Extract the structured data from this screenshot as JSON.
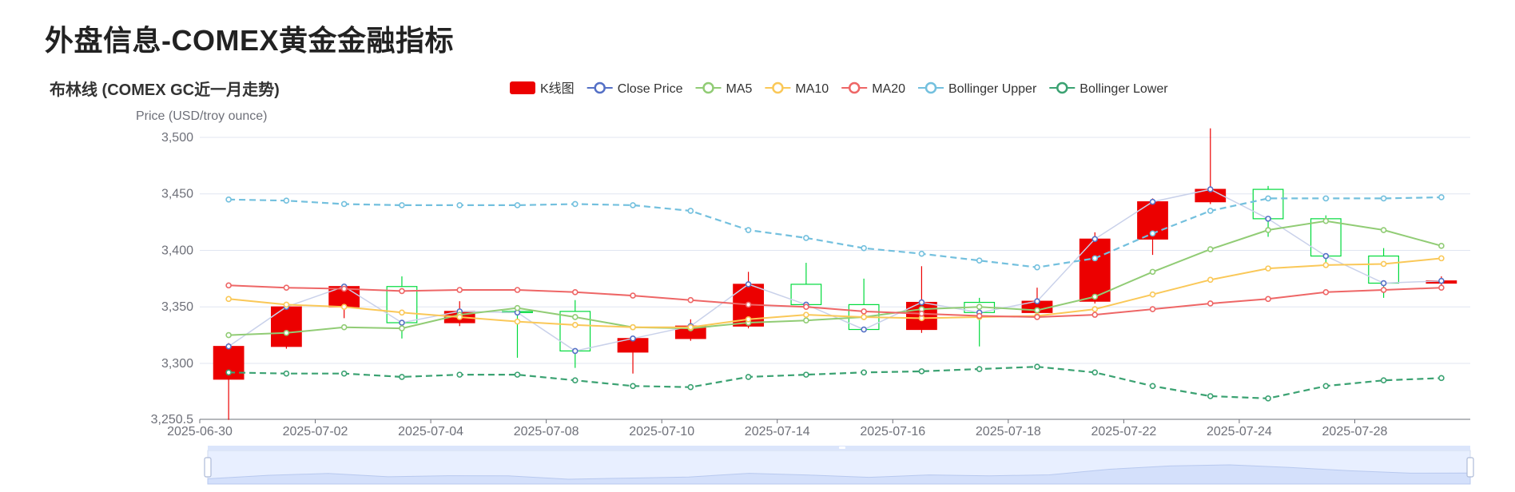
{
  "page": {
    "title": "外盘信息-COMEX黄金金融指标"
  },
  "chart_data": {
    "type": "candlestick",
    "title": "布林线 (COMEX GC近一月走势)",
    "ylabel": "Price (USD/troy ounce)",
    "ylim": [
      3250.5,
      3500
    ],
    "y_ticks": [
      3250.5,
      3300,
      3350,
      3400,
      3450,
      3500
    ],
    "y_tick_labels": [
      "3,250.5",
      "3,300",
      "3,350",
      "3,400",
      "3,450",
      "3,500"
    ],
    "x_tick_labels": [
      "2025-06-30",
      "2025-07-02",
      "2025-07-04",
      "2025-07-08",
      "2025-07-10",
      "2025-07-14",
      "2025-07-16",
      "2025-07-18",
      "2025-07-22",
      "2025-07-24",
      "2025-07-28"
    ],
    "grid": true,
    "legend_position": "top",
    "colors": {
      "up": "#ec0000",
      "down": "#00da3c",
      "close": "#5470c6",
      "ma5": "#91cc75",
      "ma10": "#fac858",
      "ma20": "#ee6666",
      "upper": "#73c0de",
      "lower": "#3ba272"
    },
    "categories": [
      "2025-06-30",
      "2025-07-01",
      "2025-07-02",
      "2025-07-03",
      "2025-07-04",
      "2025-07-07",
      "2025-07-08",
      "2025-07-09",
      "2025-07-10",
      "2025-07-11",
      "2025-07-14",
      "2025-07-15",
      "2025-07-16",
      "2025-07-17",
      "2025-07-18",
      "2025-07-21",
      "2025-07-22",
      "2025-07-23",
      "2025-07-24",
      "2025-07-25",
      "2025-07-28",
      "2025-07-29"
    ],
    "candles": [
      {
        "date": "2025-06-30",
        "open": 3286,
        "close": 3315,
        "low": 3250,
        "high": 3318
      },
      {
        "date": "2025-07-01",
        "open": 3315,
        "close": 3350,
        "low": 3313,
        "high": 3352
      },
      {
        "date": "2025-07-02",
        "open": 3350,
        "close": 3368,
        "low": 3340,
        "high": 3370
      },
      {
        "date": "2025-07-03",
        "open": 3368,
        "close": 3336,
        "low": 3322,
        "high": 3377
      },
      {
        "date": "2025-07-04",
        "open": 3336,
        "close": 3346,
        "low": 3333,
        "high": 3355
      },
      {
        "date": "2025-07-07",
        "open": 3346,
        "close": 3345,
        "low": 3305,
        "high": 3349
      },
      {
        "date": "2025-07-08",
        "open": 3346,
        "close": 3311,
        "low": 3296,
        "high": 3356
      },
      {
        "date": "2025-07-09",
        "open": 3310,
        "close": 3322,
        "low": 3291,
        "high": 3324
      },
      {
        "date": "2025-07-10",
        "open": 3322,
        "close": 3333,
        "low": 3320,
        "high": 3339
      },
      {
        "date": "2025-07-11",
        "open": 3333,
        "close": 3370,
        "low": 3331,
        "high": 3381
      },
      {
        "date": "2025-07-14",
        "open": 3370,
        "close": 3352,
        "low": 3350,
        "high": 3389
      },
      {
        "date": "2025-07-15",
        "open": 3352,
        "close": 3330,
        "low": 3328,
        "high": 3375
      },
      {
        "date": "2025-07-16",
        "open": 3330,
        "close": 3354,
        "low": 3327,
        "high": 3386
      },
      {
        "date": "2025-07-17",
        "open": 3354,
        "close": 3345,
        "low": 3315,
        "high": 3358
      },
      {
        "date": "2025-07-18",
        "open": 3345,
        "close": 3355,
        "low": 3343,
        "high": 3367
      },
      {
        "date": "2025-07-21",
        "open": 3355,
        "close": 3410,
        "low": 3353,
        "high": 3416
      },
      {
        "date": "2025-07-22",
        "open": 3410,
        "close": 3443,
        "low": 3396,
        "high": 3446
      },
      {
        "date": "2025-07-23",
        "open": 3443,
        "close": 3454,
        "low": 3441,
        "high": 3508
      },
      {
        "date": "2025-07-24",
        "open": 3454,
        "close": 3428,
        "low": 3412,
        "high": 3457
      },
      {
        "date": "2025-07-25",
        "open": 3428,
        "close": 3395,
        "low": 3385,
        "high": 3431
      },
      {
        "date": "2025-07-28",
        "open": 3395,
        "close": 3371,
        "low": 3358,
        "high": 3402
      },
      {
        "date": "2025-07-29",
        "open": 3371,
        "close": 3373,
        "low": 3365,
        "high": 3377
      }
    ],
    "series": [
      {
        "name": "Close Price",
        "key": "close",
        "style": "solid-light",
        "values": [
          3315,
          3350,
          3368,
          3336,
          3346,
          3345,
          3311,
          3322,
          3333,
          3370,
          3352,
          3330,
          3354,
          3345,
          3355,
          3410,
          3443,
          3454,
          3428,
          3395,
          3371,
          3373
        ]
      },
      {
        "name": "MA5",
        "key": "ma5",
        "style": "solid",
        "values": [
          3325,
          3327,
          3332,
          3331,
          3343,
          3349,
          3341,
          3332,
          3331,
          3336,
          3338,
          3341,
          3348,
          3350,
          3347,
          3359,
          3381,
          3401,
          3418,
          3426,
          3418,
          3404
        ]
      },
      {
        "name": "MA10",
        "key": "ma10",
        "style": "solid",
        "values": [
          3357,
          3352,
          3350,
          3345,
          3341,
          3337,
          3334,
          3332,
          3332,
          3339,
          3343,
          3341,
          3340,
          3341,
          3342,
          3348,
          3361,
          3374,
          3384,
          3387,
          3388,
          3393
        ]
      },
      {
        "name": "MA20",
        "key": "ma20",
        "style": "solid",
        "values": [
          3369,
          3367,
          3366,
          3364,
          3365,
          3365,
          3363,
          3360,
          3356,
          3352,
          3350,
          3346,
          3344,
          3342,
          3341,
          3343,
          3348,
          3353,
          3357,
          3363,
          3365,
          3367
        ]
      },
      {
        "name": "Bollinger Upper",
        "key": "upper",
        "style": "dashed",
        "values": [
          3445,
          3444,
          3441,
          3440,
          3440,
          3440,
          3441,
          3440,
          3435,
          3418,
          3411,
          3402,
          3397,
          3391,
          3385,
          3393,
          3415,
          3435,
          3446,
          3446,
          3446,
          3447
        ]
      },
      {
        "name": "Bollinger Lower",
        "key": "lower",
        "style": "dashed",
        "values": [
          3292,
          3291,
          3291,
          3288,
          3290,
          3290,
          3285,
          3280,
          3279,
          3288,
          3290,
          3292,
          3293,
          3295,
          3297,
          3292,
          3280,
          3271,
          3269,
          3280,
          3285,
          3287
        ]
      }
    ],
    "legend": [
      {
        "name": "K线图",
        "key": "kline"
      },
      {
        "name": "Close Price",
        "key": "close"
      },
      {
        "name": "MA5",
        "key": "ma5"
      },
      {
        "name": "MA10",
        "key": "ma10"
      },
      {
        "name": "MA20",
        "key": "ma20"
      },
      {
        "name": "Bollinger Upper",
        "key": "upper"
      },
      {
        "name": "Bollinger Lower",
        "key": "lower"
      }
    ],
    "datazoom": {
      "start": 0,
      "end": 100
    }
  }
}
